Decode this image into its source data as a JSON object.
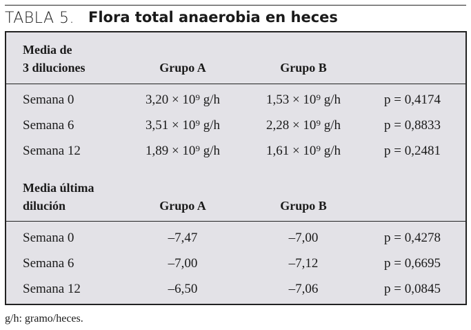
{
  "title": {
    "label": "TABLA 5.",
    "text": "Flora total anaerobia en heces"
  },
  "sections": [
    {
      "header": [
        [
          "Media de",
          "3 diluciones"
        ],
        "Grupo A",
        "Grupo B"
      ],
      "rows": [
        [
          "Semana 0",
          "3,20 × 10⁹ g/h",
          "1,53 × 10⁹ g/h",
          "p = 0,4174"
        ],
        [
          "Semana 6",
          "3,51 × 10⁹ g/h",
          "2,28 × 10⁹ g/h",
          "p = 0,8833"
        ],
        [
          "Semana 12",
          "1,89 × 10⁹ g/h",
          "1,61 × 10⁹ g/h",
          "p = 0,2481"
        ]
      ]
    },
    {
      "header": [
        [
          "Media última",
          "dilución"
        ],
        "Grupo A",
        "Grupo B"
      ],
      "rows": [
        [
          "Semana 0",
          "–7,47",
          "–7,00",
          "p = 0,4278"
        ],
        [
          "Semana 6",
          "–7,00",
          "–7,12",
          "p = 0,6695"
        ],
        [
          "Semana 12",
          "–6,50",
          "–7,06",
          "p = 0,0845"
        ]
      ]
    }
  ],
  "footnote": "g/h: gramo/heces."
}
